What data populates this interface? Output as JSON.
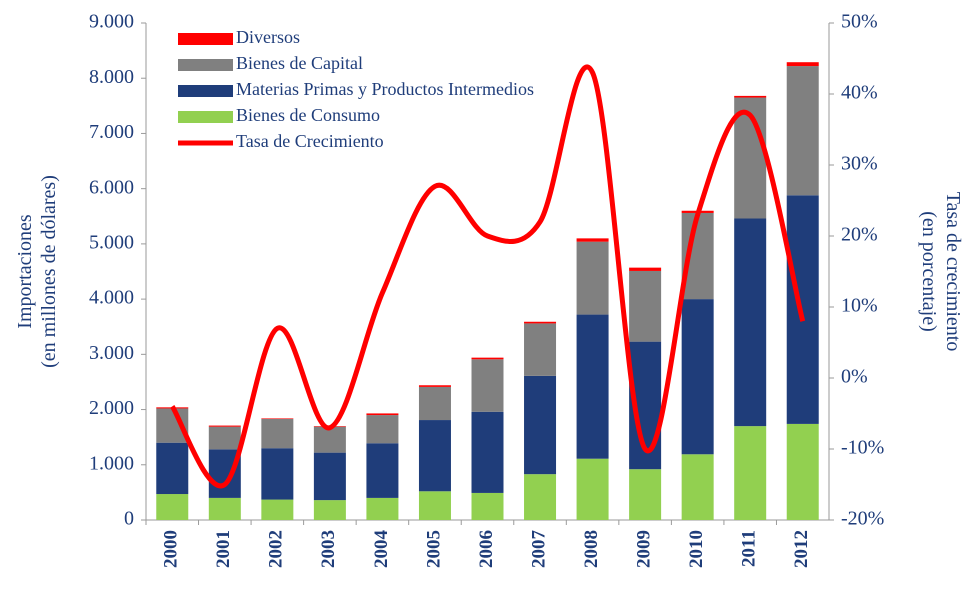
{
  "chart_data": {
    "type": "bar",
    "stacked": true,
    "categories": [
      "2000",
      "2001",
      "2002",
      "2003",
      "2004",
      "2005",
      "2006",
      "2007",
      "2008",
      "2009",
      "2010",
      "2011",
      "2012"
    ],
    "series": [
      {
        "name": "Bienes de Consumo",
        "color": "#92d050",
        "values": [
          470,
          400,
          370,
          360,
          400,
          520,
          490,
          830,
          1110,
          920,
          1190,
          1700,
          1740
        ]
      },
      {
        "name": "Materias Primas y Productos Intermedios",
        "color": "#1f3d7a",
        "values": [
          930,
          880,
          930,
          860,
          990,
          1290,
          1470,
          1780,
          2610,
          2310,
          2810,
          3760,
          4140
        ]
      },
      {
        "name": "Bienes de Capital",
        "color": "#808080",
        "values": [
          620,
          410,
          530,
          470,
          510,
          600,
          950,
          950,
          1320,
          1280,
          1560,
          2190,
          2340
        ]
      },
      {
        "name": "Diversos",
        "color": "#ff0000",
        "values": [
          20,
          20,
          10,
          10,
          30,
          30,
          30,
          30,
          60,
          60,
          40,
          30,
          70
        ]
      },
      {
        "name": "Tasa de Crecimiento",
        "color": "#ff0000",
        "type": "line",
        "axis": "y2",
        "values": [
          -4,
          -15,
          7,
          -7,
          12,
          27,
          20,
          22,
          43,
          -10,
          23,
          37,
          8
        ]
      }
    ],
    "ylabel": [
      "Importaciones",
      "(en millones de dólares)"
    ],
    "y2label": [
      "Tasa de crecimiento",
      "(en porcentaje)"
    ],
    "ylim": [
      0,
      9000
    ],
    "yticks": [
      0,
      {
        "value": 1000,
        "label": "1.000"
      },
      {
        "value": 2000,
        "label": "2.000"
      },
      {
        "value": 3000,
        "label": "3.000"
      },
      {
        "value": 4000,
        "label": "4.000"
      },
      {
        "value": 5000,
        "label": "5.000"
      },
      {
        "value": 6000,
        "label": "6.000"
      },
      {
        "value": 7000,
        "label": "7.000"
      },
      {
        "value": 8000,
        "label": "8.000"
      },
      {
        "value": 9000,
        "label": "9.000"
      }
    ],
    "y2lim": [
      -20,
      50
    ],
    "y2ticks": [
      {
        "value": -20,
        "label": "-20%"
      },
      {
        "value": -10,
        "label": "-10%"
      },
      {
        "value": 0,
        "label": "0%"
      },
      {
        "value": 10,
        "label": "10%"
      },
      {
        "value": 20,
        "label": "20%"
      },
      {
        "value": 30,
        "label": "30%"
      },
      {
        "value": 40,
        "label": "40%"
      },
      {
        "value": 50,
        "label": "50%"
      }
    ],
    "grid": false,
    "legend": "top-left"
  }
}
